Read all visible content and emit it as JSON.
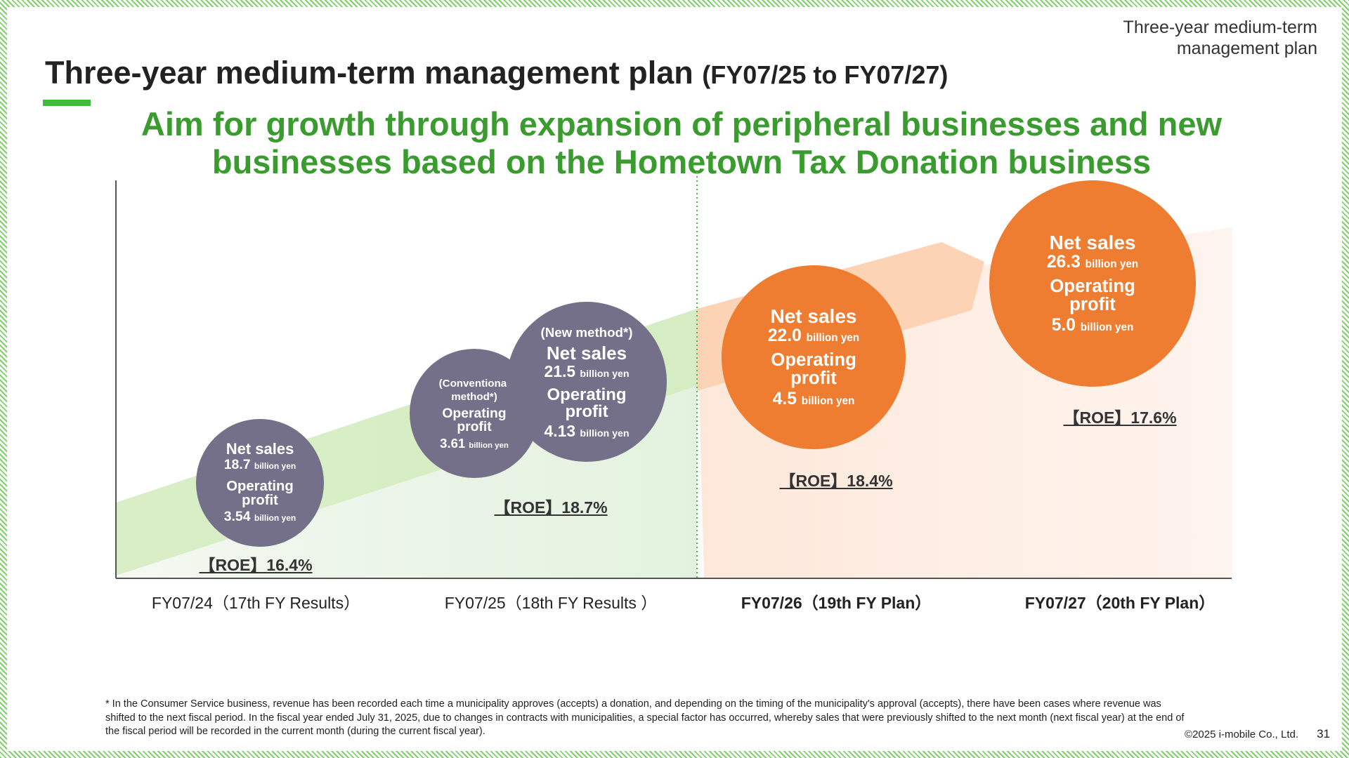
{
  "header": {
    "corner": "Three-year medium-term management plan",
    "title": "Three-year medium-term management plan",
    "title_suffix": "(FY07/25 to FY07/27)"
  },
  "headline": "Aim for growth through expansion of peripheral businesses and new businesses based on the Hometown Tax Donation business",
  "periods": [
    {
      "label": "FY07/24（17th FY Results）",
      "roe": "【ROE】16.4%",
      "bubbles": [
        {
          "net_sales_label": "Net sales",
          "net_sales": "18.7",
          "net_sales_unit": "billion yen",
          "op_label": "Operating profit",
          "op": "3.54",
          "op_unit": "billion yen"
        }
      ]
    },
    {
      "label": "FY07/25（18th FY Results ）",
      "roe": "【ROE】18.7%",
      "bubbles": [
        {
          "method": "(Conventional method*)",
          "op_label": "Operating profit",
          "op": "3.61",
          "op_unit": "billion yen"
        },
        {
          "method": "(New method*)",
          "net_sales_label": "Net sales",
          "net_sales": "21.5",
          "net_sales_unit": "billion yen",
          "op_label": "Operating profit",
          "op": "4.13",
          "op_unit": "billion yen"
        }
      ]
    },
    {
      "label": "FY07/26（19th FY Plan）",
      "roe": "【ROE】18.4%",
      "bubbles": [
        {
          "net_sales_label": "Net sales",
          "net_sales": "22.0",
          "net_sales_unit": "billion yen",
          "op_label": "Operating profit",
          "op": "4.5",
          "op_unit": "billion yen"
        }
      ]
    },
    {
      "label": "FY07/27（20th FY Plan）",
      "roe": "【ROE】17.6%",
      "bubbles": [
        {
          "net_sales_label": "Net sales",
          "net_sales": "26.3",
          "net_sales_unit": "billion yen",
          "op_label": "Operating profit",
          "op": "5.0",
          "op_unit": "billion yen"
        }
      ]
    }
  ],
  "footnote": "* In the Consumer Service business, revenue has been recorded each time a municipality approves (accepts) a donation, and depending on the timing of the municipality's approval (accepts), there have been cases where revenue was shifted to the next fiscal period. In the fiscal year ended July 31, 2025, due to changes in contracts with municipalities, a special factor has occurred, whereby sales that were previously shifted to the next month (next fiscal year) at the end of the fiscal period will be recorded in the current month (during the current fiscal year).",
  "copyright": "©2025 i-mobile Co., Ltd.",
  "page_number": "31"
}
